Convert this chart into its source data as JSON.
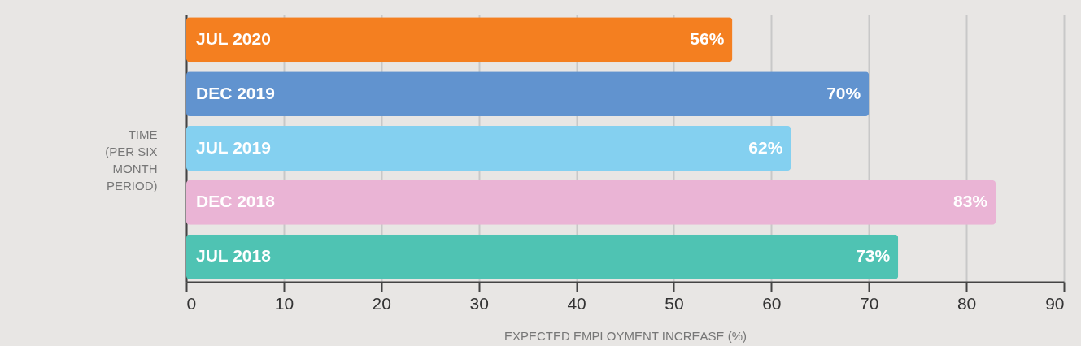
{
  "chart_data": {
    "type": "bar",
    "orientation": "horizontal",
    "categories": [
      "JUL 2020",
      "DEC 2019",
      "JUL 2019",
      "DEC 2018",
      "JUL 2018"
    ],
    "values": [
      56,
      70,
      62,
      83,
      73
    ],
    "value_labels": [
      "56%",
      "70%",
      "62%",
      "83%",
      "73%"
    ],
    "colors": [
      "#f47f20",
      "#6193cf",
      "#84d0f0",
      "#eab4d5",
      "#4fc3b3"
    ],
    "xlim": [
      0,
      90
    ],
    "xticks": [
      0,
      10,
      20,
      30,
      40,
      50,
      60,
      70,
      80,
      90
    ],
    "grid": "x",
    "xlabel": "EXPECTED EMPLOYMENT INCREASE (%)",
    "ylabel": "TIME (PER SIX MONTH PERIOD)"
  }
}
